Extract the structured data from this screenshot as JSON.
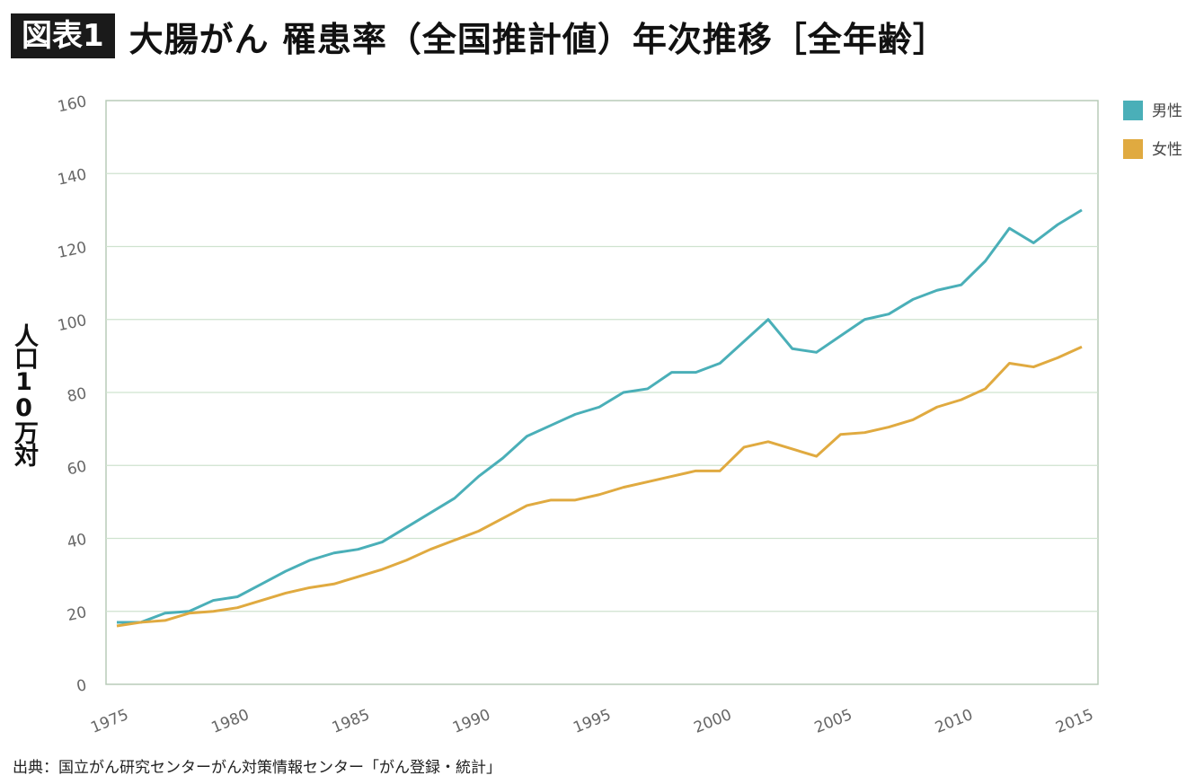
{
  "header": {
    "badge": "図表1",
    "title": "大腸がん 罹患率（全国推計値）年次推移［全年齢］"
  },
  "source": "出典：国立がん研究センターがん対策情報センター「がん登録・統計」",
  "colors": {
    "male": "#4aafb8",
    "female": "#e0aa40",
    "grid": "#cfe3cf",
    "axis": "#b8cbb8"
  },
  "chart_data": {
    "type": "line",
    "ylabel": "人口10万対",
    "xlabel": "",
    "ylim": [
      0,
      160
    ],
    "y_ticks": [
      "0",
      "20",
      "40",
      "60",
      "80",
      "100",
      "120",
      "140",
      "160"
    ],
    "x_ticks": [
      "1975",
      "1980",
      "1985",
      "1990",
      "1995",
      "2000",
      "2005",
      "2010",
      "2015"
    ],
    "xlim": [
      1975,
      2015
    ],
    "grid": true,
    "legend_position": "top-right",
    "x": [
      1975,
      1976,
      1977,
      1978,
      1979,
      1980,
      1981,
      1982,
      1983,
      1984,
      1985,
      1986,
      1987,
      1988,
      1989,
      1990,
      1991,
      1992,
      1993,
      1994,
      1995,
      1996,
      1997,
      1998,
      1999,
      2000,
      2001,
      2002,
      2003,
      2004,
      2005,
      2006,
      2007,
      2008,
      2009,
      2010,
      2011,
      2012,
      2013,
      2014,
      2015
    ],
    "series": [
      {
        "name": "男性",
        "color": "#4aafb8",
        "values": [
          17,
          17,
          19.5,
          20,
          23,
          24,
          27.5,
          31,
          34,
          36,
          37,
          39,
          43,
          47,
          51,
          57,
          62,
          68,
          71,
          74,
          76,
          80,
          81,
          85.5,
          85.5,
          88,
          94,
          100,
          92,
          91,
          95.5,
          100,
          101.5,
          105.5,
          108,
          109.5,
          116,
          125,
          121,
          126,
          130
        ]
      },
      {
        "name": "女性",
        "color": "#e0aa40",
        "values": [
          16,
          17,
          17.5,
          19.5,
          20,
          21,
          23,
          25,
          26.5,
          27.5,
          29.5,
          31.5,
          34,
          37,
          39.5,
          42,
          45.5,
          49,
          50.5,
          50.5,
          52,
          54,
          55.5,
          57,
          58.5,
          58.5,
          65,
          66.5,
          64.5,
          62.5,
          68.5,
          69,
          70.5,
          72.5,
          76,
          78,
          81,
          88,
          87,
          89.5,
          92.5
        ]
      }
    ]
  }
}
